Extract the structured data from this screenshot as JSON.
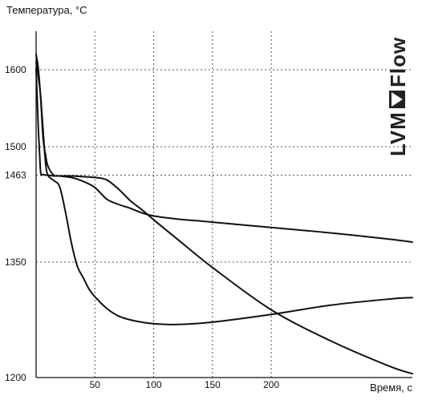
{
  "chart_data": {
    "type": "line",
    "ylabel": "Температура, °C",
    "xlabel": "Время, с",
    "xlim": [
      0,
      320
    ],
    "ylim": [
      1200,
      1650
    ],
    "x_ticks": [
      50,
      100,
      150,
      200
    ],
    "y_ticks": [
      1200,
      1350,
      1463,
      1500,
      1600
    ],
    "grid": true,
    "series": [
      {
        "x": [
          0,
          2,
          4,
          6,
          8,
          10,
          15,
          20,
          25,
          30,
          35,
          40,
          45,
          50,
          60,
          70,
          80,
          90,
          100,
          120,
          150,
          200,
          250,
          300,
          320
        ],
        "y": [
          1610,
          1590,
          1563,
          1520,
          1480,
          1463,
          1456,
          1448,
          1415,
          1375,
          1345,
          1330,
          1315,
          1305,
          1290,
          1280,
          1275,
          1272,
          1270,
          1269,
          1272,
          1282,
          1294,
          1302,
          1304
        ]
      },
      {
        "x": [
          0,
          1,
          2,
          3,
          4,
          6,
          8,
          10,
          15,
          20,
          30,
          40,
          50,
          60,
          70,
          80,
          90,
          100,
          120,
          150,
          200,
          250,
          300,
          320
        ],
        "y": [
          1602,
          1560,
          1520,
          1490,
          1465,
          1464,
          1463,
          1463,
          1462,
          1462,
          1462,
          1461,
          1460,
          1457,
          1445,
          1430,
          1418,
          1405,
          1380,
          1343,
          1288,
          1248,
          1215,
          1205
        ]
      },
      {
        "x": [
          0,
          2,
          4,
          6,
          8,
          10,
          15,
          20,
          30,
          40,
          50,
          60,
          70,
          80,
          90,
          100,
          120,
          150,
          200,
          250,
          300,
          320
        ],
        "y": [
          1620,
          1600,
          1560,
          1510,
          1490,
          1475,
          1463,
          1462,
          1460,
          1455,
          1447,
          1432,
          1425,
          1420,
          1414,
          1410,
          1406,
          1402,
          1395,
          1388,
          1380,
          1376
        ]
      }
    ],
    "colors": {
      "line": "#111111",
      "grid": "#555555",
      "axis": "#111111"
    }
  },
  "logo": {
    "text_left": "LVM",
    "text_right": "Flow"
  }
}
